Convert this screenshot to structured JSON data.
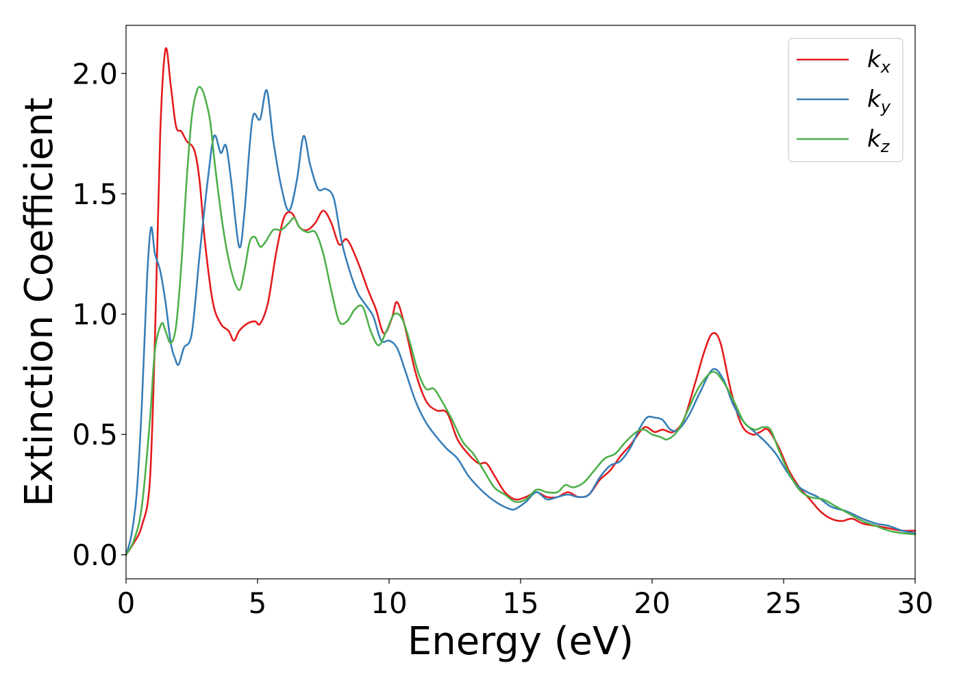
{
  "chart_data": {
    "type": "line",
    "xlabel": "Energy (eV)",
    "ylabel": "Extinction Coefficient",
    "xlim": [
      0,
      30
    ],
    "ylim": [
      -0.1,
      2.2
    ],
    "xticks": [
      0,
      5,
      10,
      15,
      20,
      25,
      30
    ],
    "xtick_labels": [
      "0",
      "5",
      "10",
      "15",
      "20",
      "25",
      "30"
    ],
    "yticks": [
      0.0,
      0.5,
      1.0,
      1.5,
      2.0
    ],
    "ytick_labels": [
      "0.0",
      "0.5",
      "1.0",
      "1.5",
      "2.0"
    ],
    "grid": false,
    "legend_position": "top-right",
    "series": [
      {
        "name": "k_x",
        "label_main": "k",
        "label_sub": "x",
        "color": "#e41a1c",
        "x": [
          0,
          0.3,
          0.6,
          0.9,
          1.1,
          1.3,
          1.5,
          1.7,
          1.9,
          2.1,
          2.3,
          2.6,
          2.8,
          3.0,
          3.3,
          3.6,
          3.9,
          4.1,
          4.3,
          4.6,
          4.9,
          5.1,
          5.4,
          5.7,
          6.0,
          6.3,
          6.6,
          6.9,
          7.2,
          7.5,
          7.8,
          8.1,
          8.4,
          8.8,
          9.2,
          9.5,
          9.8,
          10.1,
          10.3,
          10.6,
          11.0,
          11.4,
          11.8,
          12.2,
          12.6,
          13.0,
          13.4,
          13.7,
          14.0,
          14.4,
          14.8,
          15.2,
          15.6,
          16.0,
          16.4,
          16.8,
          17.2,
          17.6,
          18.0,
          18.4,
          18.8,
          19.2,
          19.6,
          19.8,
          20.1,
          20.4,
          20.8,
          21.2,
          21.6,
          22.0,
          22.3,
          22.6,
          23.0,
          23.4,
          23.8,
          24.1,
          24.4,
          24.8,
          25.2,
          25.6,
          26.0,
          26.4,
          26.8,
          27.2,
          27.6,
          28.0,
          28.5,
          29.0,
          29.5,
          30
        ],
        "y": [
          0.0,
          0.05,
          0.12,
          0.3,
          0.9,
          1.75,
          2.1,
          1.95,
          1.78,
          1.76,
          1.72,
          1.68,
          1.55,
          1.3,
          1.05,
          0.96,
          0.93,
          0.89,
          0.93,
          0.96,
          0.97,
          0.96,
          1.05,
          1.25,
          1.4,
          1.42,
          1.36,
          1.35,
          1.38,
          1.43,
          1.38,
          1.29,
          1.31,
          1.22,
          1.1,
          1.02,
          0.92,
          0.98,
          1.05,
          0.95,
          0.76,
          0.64,
          0.6,
          0.59,
          0.48,
          0.42,
          0.38,
          0.38,
          0.33,
          0.26,
          0.23,
          0.24,
          0.26,
          0.24,
          0.24,
          0.26,
          0.24,
          0.25,
          0.31,
          0.35,
          0.41,
          0.46,
          0.52,
          0.53,
          0.51,
          0.52,
          0.51,
          0.56,
          0.7,
          0.85,
          0.92,
          0.88,
          0.68,
          0.54,
          0.5,
          0.51,
          0.52,
          0.45,
          0.35,
          0.28,
          0.23,
          0.18,
          0.15,
          0.14,
          0.15,
          0.13,
          0.12,
          0.11,
          0.1,
          0.1
        ]
      },
      {
        "name": "k_y",
        "label_main": "k",
        "label_sub": "y",
        "color": "#377eb8",
        "x": [
          0,
          0.2,
          0.4,
          0.6,
          0.8,
          0.95,
          1.1,
          1.3,
          1.5,
          1.7,
          1.85,
          2.0,
          2.2,
          2.5,
          2.8,
          3.1,
          3.35,
          3.6,
          3.8,
          4.0,
          4.3,
          4.5,
          4.7,
          4.85,
          5.1,
          5.35,
          5.6,
          5.9,
          6.2,
          6.5,
          6.75,
          7.0,
          7.3,
          7.6,
          7.9,
          8.2,
          8.5,
          8.8,
          9.1,
          9.4,
          9.7,
          10.0,
          10.3,
          10.6,
          11.0,
          11.4,
          11.8,
          12.2,
          12.6,
          13.0,
          13.4,
          13.8,
          14.2,
          14.6,
          14.8,
          15.2,
          15.6,
          16.0,
          16.4,
          16.8,
          17.2,
          17.6,
          18.0,
          18.4,
          18.8,
          19.2,
          19.5,
          19.8,
          20.1,
          20.4,
          20.7,
          21.0,
          21.4,
          21.8,
          22.3,
          22.7,
          23.1,
          23.5,
          23.9,
          24.3,
          24.7,
          25.1,
          25.5,
          25.9,
          26.3,
          26.8,
          27.4,
          28.0,
          28.5,
          29.0,
          29.5,
          30
        ],
        "y": [
          0.0,
          0.08,
          0.25,
          0.62,
          1.15,
          1.36,
          1.25,
          1.18,
          1.05,
          0.88,
          0.82,
          0.79,
          0.86,
          0.92,
          1.25,
          1.55,
          1.74,
          1.67,
          1.7,
          1.55,
          1.28,
          1.42,
          1.7,
          1.83,
          1.81,
          1.93,
          1.72,
          1.53,
          1.43,
          1.56,
          1.74,
          1.62,
          1.52,
          1.52,
          1.48,
          1.3,
          1.18,
          1.09,
          1.04,
          0.99,
          0.89,
          0.89,
          0.86,
          0.77,
          0.64,
          0.55,
          0.49,
          0.44,
          0.4,
          0.33,
          0.28,
          0.24,
          0.21,
          0.19,
          0.19,
          0.22,
          0.26,
          0.23,
          0.24,
          0.25,
          0.24,
          0.25,
          0.32,
          0.37,
          0.39,
          0.45,
          0.52,
          0.57,
          0.57,
          0.56,
          0.52,
          0.52,
          0.58,
          0.67,
          0.77,
          0.73,
          0.62,
          0.55,
          0.51,
          0.47,
          0.42,
          0.35,
          0.29,
          0.26,
          0.24,
          0.2,
          0.18,
          0.15,
          0.13,
          0.12,
          0.1,
          0.09
        ]
      },
      {
        "name": "k_z",
        "label_main": "k",
        "label_sub": "z",
        "color": "#4daf4a",
        "x": [
          0,
          0.3,
          0.6,
          0.9,
          1.1,
          1.35,
          1.5,
          1.7,
          1.9,
          2.1,
          2.3,
          2.5,
          2.7,
          2.85,
          3.0,
          3.2,
          3.4,
          3.7,
          4.0,
          4.3,
          4.5,
          4.7,
          4.9,
          5.1,
          5.3,
          5.6,
          5.9,
          6.2,
          6.4,
          6.6,
          6.9,
          7.2,
          7.5,
          7.8,
          8.1,
          8.4,
          8.7,
          9.0,
          9.3,
          9.6,
          9.9,
          10.2,
          10.5,
          10.8,
          11.1,
          11.4,
          11.7,
          12.0,
          12.4,
          12.8,
          13.2,
          13.6,
          14.0,
          14.4,
          14.8,
          15.2,
          15.6,
          16.0,
          16.4,
          16.7,
          17.0,
          17.4,
          17.8,
          18.2,
          18.6,
          19.0,
          19.4,
          19.7,
          20.0,
          20.3,
          20.6,
          21.0,
          21.4,
          21.8,
          22.3,
          22.7,
          23.1,
          23.5,
          23.9,
          24.2,
          24.5,
          24.8,
          25.2,
          25.6,
          26.0,
          26.5,
          27.0,
          27.5,
          28.0,
          28.5,
          29.0,
          29.5,
          30
        ],
        "y": [
          0.0,
          0.06,
          0.2,
          0.55,
          0.85,
          0.96,
          0.93,
          0.88,
          0.95,
          1.2,
          1.55,
          1.82,
          1.93,
          1.94,
          1.9,
          1.8,
          1.6,
          1.35,
          1.18,
          1.1,
          1.18,
          1.3,
          1.32,
          1.28,
          1.3,
          1.35,
          1.35,
          1.38,
          1.4,
          1.36,
          1.34,
          1.34,
          1.25,
          1.1,
          0.97,
          0.97,
          1.02,
          1.03,
          0.93,
          0.87,
          0.93,
          1.0,
          0.98,
          0.88,
          0.76,
          0.69,
          0.69,
          0.64,
          0.56,
          0.47,
          0.42,
          0.35,
          0.28,
          0.25,
          0.22,
          0.23,
          0.27,
          0.26,
          0.26,
          0.29,
          0.28,
          0.3,
          0.35,
          0.4,
          0.42,
          0.47,
          0.51,
          0.52,
          0.5,
          0.49,
          0.48,
          0.52,
          0.61,
          0.7,
          0.76,
          0.72,
          0.64,
          0.55,
          0.52,
          0.53,
          0.52,
          0.44,
          0.34,
          0.27,
          0.24,
          0.23,
          0.2,
          0.17,
          0.14,
          0.12,
          0.1,
          0.09,
          0.085
        ]
      }
    ]
  }
}
